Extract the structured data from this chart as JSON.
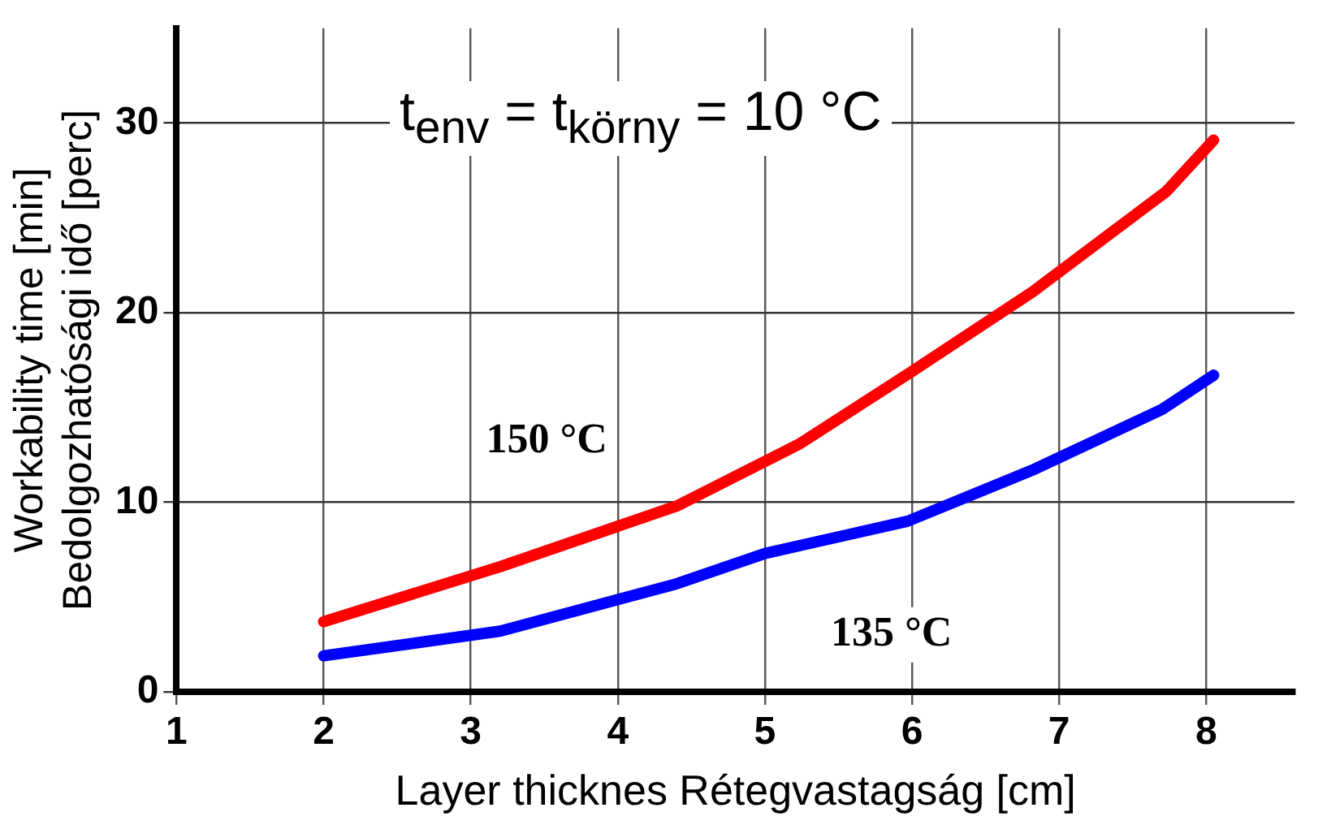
{
  "chart_data": {
    "type": "line",
    "xlabel": "Layer thicknes Rétegvastagság [cm]",
    "ylabel": "Workability time [min]\nBedolgozhatósági idő [perc]",
    "annotations": [
      "t$_{env}$ = t$_{körny}$ = 10 °C"
    ],
    "xlim": [
      1,
      8.6
    ],
    "xticks": [
      1,
      2,
      3,
      4,
      5,
      6,
      7,
      8
    ],
    "ylim": [
      0,
      35
    ],
    "yticks": [
      0,
      10,
      20,
      30
    ],
    "grid": true,
    "marker": "none",
    "line_style": "solid",
    "series": [
      {
        "name": "150 °C",
        "color": "#ff0000",
        "x": [
          2,
          3.2,
          4.4,
          5.24,
          6,
          6.82,
          7.73,
          8.05
        ],
        "values": [
          3.7,
          6.6,
          9.8,
          13.1,
          16.9,
          21.1,
          26.4,
          29.1
        ]
      },
      {
        "name": "135 °C",
        "color": "#0000ff",
        "x": [
          2,
          3.2,
          4.4,
          5,
          5.97,
          6.82,
          7.7,
          8.05
        ],
        "values": [
          1.9,
          3.2,
          5.7,
          7.3,
          9.0,
          11.7,
          14.9,
          16.7
        ]
      }
    ]
  }
}
